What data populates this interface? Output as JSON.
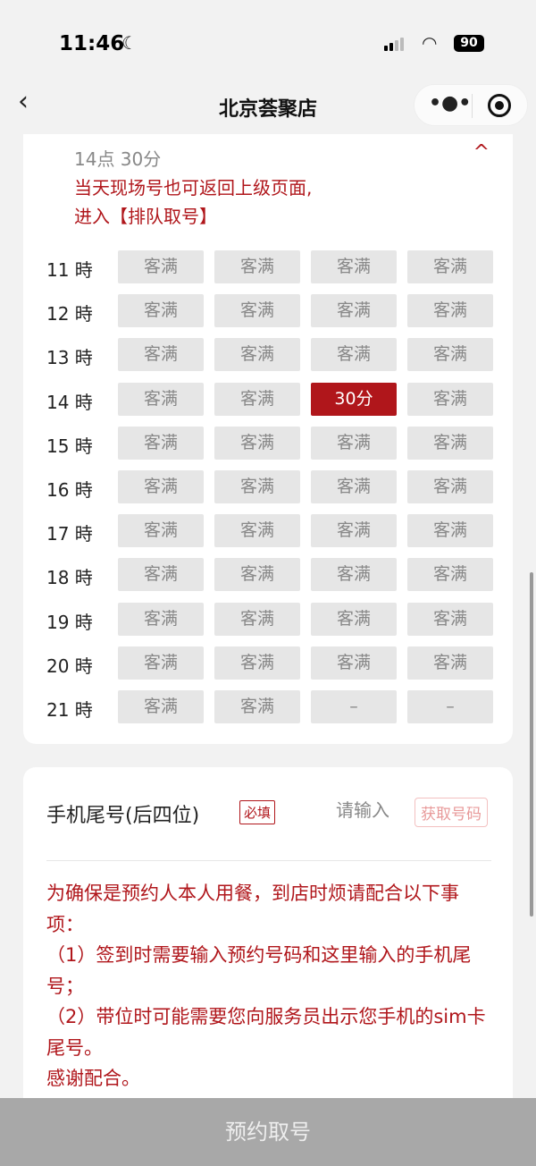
{
  "status": {
    "time": "11:46",
    "battery": "90",
    "moon_icon": "moon-icon",
    "wifi_icon": "wifi-icon"
  },
  "nav": {
    "title": "北京荟聚店",
    "back_icon": "chevron-left-icon",
    "more_icon": "more-dots-icon",
    "close_icon": "target-icon"
  },
  "slots": {
    "selected": "14点 30分",
    "hint": [
      "当天现场号也可返回上级页面,",
      "进入【排队取号】"
    ],
    "rows": [
      {
        "hour": "11 時",
        "cells": [
          "客满",
          "客满",
          "客满",
          "客满"
        ]
      },
      {
        "hour": "12 時",
        "cells": [
          "客满",
          "客满",
          "客满",
          "客满"
        ]
      },
      {
        "hour": "13 時",
        "cells": [
          "客满",
          "客满",
          "客满",
          "客满"
        ]
      },
      {
        "hour": "14 時",
        "cells": [
          "客满",
          "客满",
          "30分",
          "客满"
        ]
      },
      {
        "hour": "15 時",
        "cells": [
          "客满",
          "客满",
          "客满",
          "客满"
        ]
      },
      {
        "hour": "16 時",
        "cells": [
          "客满",
          "客满",
          "客满",
          "客满"
        ]
      },
      {
        "hour": "17 時",
        "cells": [
          "客满",
          "客满",
          "客满",
          "客满"
        ]
      },
      {
        "hour": "18 時",
        "cells": [
          "客满",
          "客满",
          "客满",
          "客满"
        ]
      },
      {
        "hour": "19 時",
        "cells": [
          "客满",
          "客满",
          "客满",
          "客满"
        ]
      },
      {
        "hour": "20 時",
        "cells": [
          "客满",
          "客满",
          "客满",
          "客满"
        ]
      },
      {
        "hour": "21 時",
        "cells": [
          "客满",
          "客满",
          "–",
          "–"
        ]
      }
    ],
    "selected_cell": {
      "row": 3,
      "col": 2
    },
    "accent": "#b0161b"
  },
  "phone": {
    "label": "手机尾号(后四位)",
    "required": "必填",
    "placeholder": "请输入",
    "get_code": "获取号码"
  },
  "notice": "为确保是预约人本人用餐，到店时烦请配合以下事项：\n（1）签到时需要输入预约号码和这里输入的手机尾号；\n（2）带位时可能需要您向服务员出示您手机的sim卡尾号。\n感谢配合。",
  "submit": "预约取号"
}
